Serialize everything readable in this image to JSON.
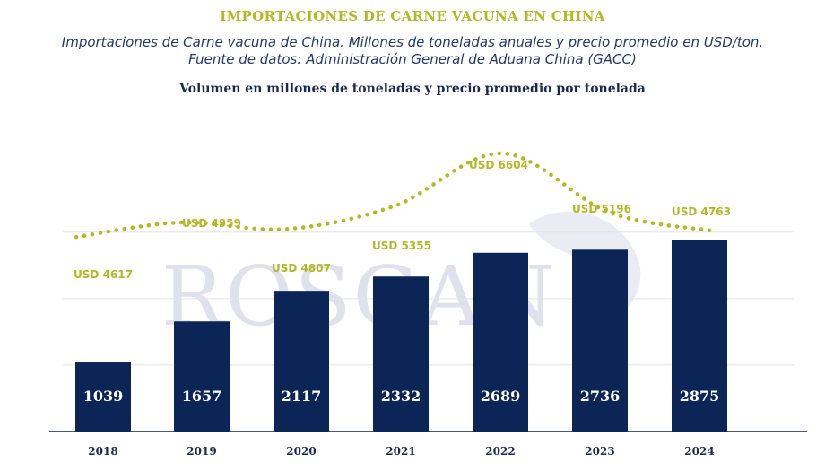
{
  "chart_data": {
    "type": "bar",
    "title": "IMPORTACIONES DE CARNE VACUNA EN CHINA",
    "subtitle_lines": [
      "Importaciones de Carne vacuna de China. Millones de toneladas anuales y precio promedio en USD/ton.",
      "Fuente de datos: Administración General de Aduana China (GACC)"
    ],
    "chart_heading": "Volumen en millones de toneladas y precio promedio por tonelada",
    "watermark": "ROSGAN",
    "categories": [
      "2018",
      "2019",
      "2020",
      "2021",
      "2022",
      "2023",
      "2024"
    ],
    "series": [
      {
        "type": "bar",
        "values": [
          1039,
          1657,
          2117,
          2332,
          2689,
          2736,
          2875
        ],
        "labels": [
          "1039",
          "1657",
          "2117",
          "2332",
          "2689",
          "2736",
          "2875"
        ],
        "color": "#0c2557"
      },
      {
        "type": "line",
        "style": "dotted",
        "values": [
          4617,
          4959,
          4807,
          5355,
          6604,
          5196,
          4763
        ],
        "labels": [
          "USD 4617",
          "USD 4959",
          "USD 4807",
          "USD 5355",
          "USD 6604",
          "USD 5196",
          "USD 4763"
        ],
        "color": "#b3b824"
      }
    ],
    "bar_ylim": [
      0,
      3500
    ],
    "line_ylim": [
      0,
      7900
    ],
    "grid": true,
    "colors": {
      "title": "#b3b824",
      "subtitle": "#243b6b",
      "bars": "#0c2557",
      "line": "#b3b824",
      "grid": "#e3e3e8"
    }
  }
}
